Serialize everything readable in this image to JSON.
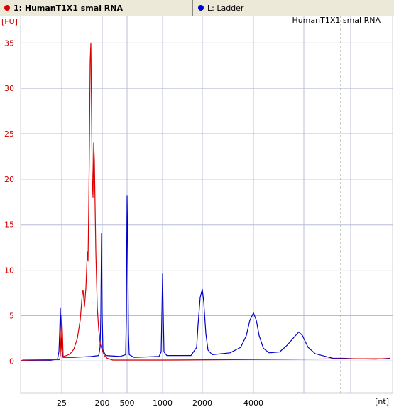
{
  "tabs": [
    {
      "label": "1: HumanT1X1 smal RNA",
      "color": "#dd0000"
    },
    {
      "label": "L: Ladder",
      "color": "#0000cc"
    }
  ],
  "chart_data": {
    "type": "line",
    "title": "HumanT1X1 smal RNA",
    "xlabel": "[nt]",
    "ylabel": "[FU]",
    "ylim": [
      -3.5,
      38
    ],
    "x_tick_labels": [
      "25",
      "200",
      "500",
      "1000",
      "2000",
      "4000"
    ],
    "y_ticks": [
      0,
      5,
      10,
      15,
      20,
      25,
      30,
      35
    ],
    "grid": true,
    "series": [
      {
        "name": "1: HumanT1X1 smal RNA",
        "color": "#dd0000",
        "points": [
          [
            0,
            0
          ],
          [
            3,
            0.1
          ],
          [
            55,
            0.15
          ],
          [
            56,
            0.6
          ],
          [
            57,
            3
          ],
          [
            58,
            5.0
          ],
          [
            59,
            3
          ],
          [
            60,
            0.5
          ],
          [
            65,
            0.6
          ],
          [
            70,
            0.8
          ],
          [
            75,
            1.3
          ],
          [
            80,
            2.5
          ],
          [
            84,
            4.5
          ],
          [
            87,
            7.5
          ],
          [
            88,
            7.8
          ],
          [
            90,
            6
          ],
          [
            92,
            8
          ],
          [
            94,
            12
          ],
          [
            95,
            11
          ],
          [
            96,
            17
          ],
          [
            97,
            24
          ],
          [
            98,
            33
          ],
          [
            99,
            35
          ],
          [
            100,
            27
          ],
          [
            101,
            20
          ],
          [
            102,
            18
          ],
          [
            103,
            24
          ],
          [
            104,
            22
          ],
          [
            105,
            17
          ],
          [
            106,
            12
          ],
          [
            107,
            9
          ],
          [
            108,
            6
          ],
          [
            110,
            3.5
          ],
          [
            112,
            2
          ],
          [
            115,
            1.2
          ],
          [
            118,
            0.6
          ],
          [
            122,
            0.3
          ],
          [
            130,
            0.1
          ],
          [
            200,
            0.1
          ],
          [
            300,
            0.15
          ],
          [
            400,
            0.2
          ],
          [
            470,
            0.25
          ],
          [
            520,
            0.25
          ]
        ]
      },
      {
        "name": "L: Ladder",
        "color": "#0000cc",
        "points": [
          [
            0,
            0
          ],
          [
            40,
            0.05
          ],
          [
            52,
            0.2
          ],
          [
            54,
            1
          ],
          [
            55,
            3
          ],
          [
            56,
            5.8
          ],
          [
            57,
            3
          ],
          [
            58,
            1.2
          ],
          [
            60,
            0.4
          ],
          [
            75,
            0.4
          ],
          [
            100,
            0.5
          ],
          [
            110,
            0.6
          ],
          [
            112,
            1.5
          ],
          [
            113,
            5
          ],
          [
            114,
            14
          ],
          [
            115,
            5
          ],
          [
            116,
            1.2
          ],
          [
            120,
            0.6
          ],
          [
            140,
            0.5
          ],
          [
            148,
            0.7
          ],
          [
            149,
            5
          ],
          [
            150,
            18.2
          ],
          [
            151,
            12
          ],
          [
            152,
            3
          ],
          [
            153,
            0.7
          ],
          [
            160,
            0.4
          ],
          [
            195,
            0.5
          ],
          [
            198,
            1
          ],
          [
            199,
            5
          ],
          [
            200,
            9.6
          ],
          [
            201,
            5
          ],
          [
            202,
            1
          ],
          [
            206,
            0.6
          ],
          [
            240,
            0.6
          ],
          [
            248,
            1.5
          ],
          [
            250,
            4
          ],
          [
            253,
            7
          ],
          [
            256,
            7.9
          ],
          [
            258,
            6.5
          ],
          [
            261,
            3
          ],
          [
            264,
            1.2
          ],
          [
            270,
            0.7
          ],
          [
            295,
            0.9
          ],
          [
            310,
            1.5
          ],
          [
            318,
            2.8
          ],
          [
            323,
            4.5
          ],
          [
            328,
            5.3
          ],
          [
            332,
            4.5
          ],
          [
            336,
            2.8
          ],
          [
            342,
            1.4
          ],
          [
            350,
            0.9
          ],
          [
            365,
            1.0
          ],
          [
            375,
            1.7
          ],
          [
            385,
            2.6
          ],
          [
            392,
            3.2
          ],
          [
            397,
            2.8
          ],
          [
            405,
            1.5
          ],
          [
            415,
            0.8
          ],
          [
            430,
            0.5
          ],
          [
            440,
            0.3
          ],
          [
            455,
            0.3
          ],
          [
            470,
            0.25
          ],
          [
            500,
            0.2
          ],
          [
            520,
            0.3
          ]
        ]
      }
    ]
  }
}
